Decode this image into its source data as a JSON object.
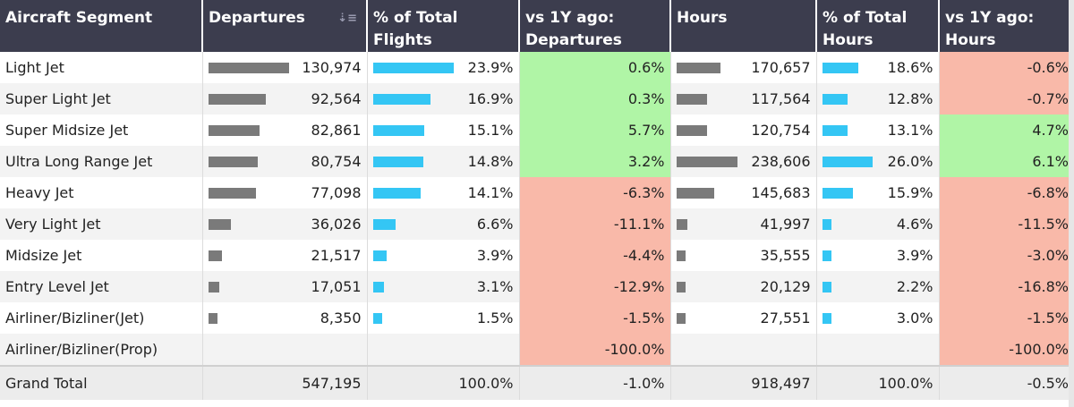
{
  "headers": {
    "segment": "Aircraft Segment",
    "departures": "Departures",
    "pct_flights": "% of Total Flights",
    "yoy_departures": "vs 1Y ago: Departures",
    "hours": "Hours",
    "pct_hours": "% of Total Hours",
    "yoy_hours": "vs 1Y ago: Hours"
  },
  "sort_icon": "sort-descending-icon",
  "colors": {
    "header_bg": "#3c3d4e",
    "positive": "#b0f5a6",
    "negative": "#f9b9a9",
    "bar_gray": "#7a7a7a",
    "bar_blue": "#34c6f4"
  },
  "rows": [
    {
      "segment": "Light Jet",
      "departures": "130,974",
      "dep_value": 130974,
      "pct_flights": "23.9%",
      "pct_flights_value": 23.9,
      "yoy_dep": "0.6%",
      "yoy_dep_value": 0.6,
      "hours": "170,657",
      "hours_value": 170657,
      "pct_hours": "18.6%",
      "pct_hours_value": 18.6,
      "yoy_hours": "-0.6%",
      "yoy_hours_value": -0.6
    },
    {
      "segment": "Super Light Jet",
      "departures": "92,564",
      "dep_value": 92564,
      "pct_flights": "16.9%",
      "pct_flights_value": 16.9,
      "yoy_dep": "0.3%",
      "yoy_dep_value": 0.3,
      "hours": "117,564",
      "hours_value": 117564,
      "pct_hours": "12.8%",
      "pct_hours_value": 12.8,
      "yoy_hours": "-0.7%",
      "yoy_hours_value": -0.7
    },
    {
      "segment": "Super Midsize Jet",
      "departures": "82,861",
      "dep_value": 82861,
      "pct_flights": "15.1%",
      "pct_flights_value": 15.1,
      "yoy_dep": "5.7%",
      "yoy_dep_value": 5.7,
      "hours": "120,754",
      "hours_value": 120754,
      "pct_hours": "13.1%",
      "pct_hours_value": 13.1,
      "yoy_hours": "4.7%",
      "yoy_hours_value": 4.7
    },
    {
      "segment": "Ultra Long Range Jet",
      "departures": "80,754",
      "dep_value": 80754,
      "pct_flights": "14.8%",
      "pct_flights_value": 14.8,
      "yoy_dep": "3.2%",
      "yoy_dep_value": 3.2,
      "hours": "238,606",
      "hours_value": 238606,
      "pct_hours": "26.0%",
      "pct_hours_value": 26.0,
      "yoy_hours": "6.1%",
      "yoy_hours_value": 6.1
    },
    {
      "segment": "Heavy Jet",
      "departures": "77,098",
      "dep_value": 77098,
      "pct_flights": "14.1%",
      "pct_flights_value": 14.1,
      "yoy_dep": "-6.3%",
      "yoy_dep_value": -6.3,
      "hours": "145,683",
      "hours_value": 145683,
      "pct_hours": "15.9%",
      "pct_hours_value": 15.9,
      "yoy_hours": "-6.8%",
      "yoy_hours_value": -6.8
    },
    {
      "segment": "Very Light Jet",
      "departures": "36,026",
      "dep_value": 36026,
      "pct_flights": "6.6%",
      "pct_flights_value": 6.6,
      "yoy_dep": "-11.1%",
      "yoy_dep_value": -11.1,
      "hours": "41,997",
      "hours_value": 41997,
      "pct_hours": "4.6%",
      "pct_hours_value": 4.6,
      "yoy_hours": "-11.5%",
      "yoy_hours_value": -11.5
    },
    {
      "segment": "Midsize Jet",
      "departures": "21,517",
      "dep_value": 21517,
      "pct_flights": "3.9%",
      "pct_flights_value": 3.9,
      "yoy_dep": "-4.4%",
      "yoy_dep_value": -4.4,
      "hours": "35,555",
      "hours_value": 35555,
      "pct_hours": "3.9%",
      "pct_hours_value": 3.9,
      "yoy_hours": "-3.0%",
      "yoy_hours_value": -3.0
    },
    {
      "segment": "Entry Level Jet",
      "departures": "17,051",
      "dep_value": 17051,
      "pct_flights": "3.1%",
      "pct_flights_value": 3.1,
      "yoy_dep": "-12.9%",
      "yoy_dep_value": -12.9,
      "hours": "20,129",
      "hours_value": 20129,
      "pct_hours": "2.2%",
      "pct_hours_value": 2.2,
      "yoy_hours": "-16.8%",
      "yoy_hours_value": -16.8
    },
    {
      "segment": "Airliner/Bizliner(Jet)",
      "departures": "8,350",
      "dep_value": 8350,
      "pct_flights": "1.5%",
      "pct_flights_value": 1.5,
      "yoy_dep": "-1.5%",
      "yoy_dep_value": -1.5,
      "hours": "27,551",
      "hours_value": 27551,
      "pct_hours": "3.0%",
      "pct_hours_value": 3.0,
      "yoy_hours": "-1.5%",
      "yoy_hours_value": -1.5
    },
    {
      "segment": "Airliner/Bizliner(Prop)",
      "departures": "",
      "dep_value": null,
      "pct_flights": "",
      "pct_flights_value": null,
      "yoy_dep": "-100.0%",
      "yoy_dep_value": -100.0,
      "hours": "",
      "hours_value": null,
      "pct_hours": "",
      "pct_hours_value": null,
      "yoy_hours": "-100.0%",
      "yoy_hours_value": -100.0
    }
  ],
  "total": {
    "segment": "Grand Total",
    "departures": "547,195",
    "pct_flights": "100.0%",
    "yoy_dep": "-1.0%",
    "hours": "918,497",
    "pct_hours": "100.0%",
    "yoy_hours": "-0.5%"
  }
}
